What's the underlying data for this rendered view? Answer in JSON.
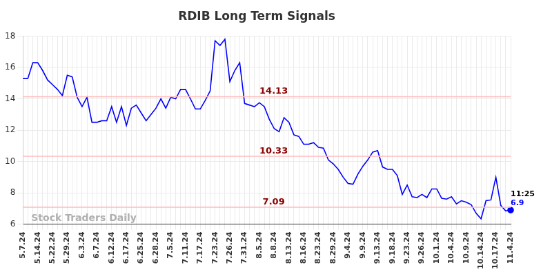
{
  "chart_data": {
    "type": "line",
    "title": "RDIB Long Term Signals",
    "categories": [
      "5.7.24",
      null,
      null,
      "5.14.24",
      null,
      null,
      "5.22.24",
      null,
      null,
      "5.29.24",
      null,
      null,
      "6.3.24",
      null,
      null,
      "6.7.24",
      null,
      null,
      "6.12.24",
      null,
      null,
      "6.17.24",
      null,
      null,
      "6.25.24",
      null,
      null,
      "6.28.24",
      null,
      null,
      "7.5.24",
      null,
      null,
      "7.11.24",
      null,
      null,
      "7.17.24",
      null,
      null,
      "7.23.24",
      null,
      null,
      "7.26.24",
      null,
      null,
      "7.31.24",
      null,
      null,
      "8.5.24",
      null,
      null,
      "8.8.24",
      null,
      null,
      "8.13.24",
      null,
      null,
      "8.16.24",
      null,
      null,
      "8.23.24",
      null,
      null,
      "8.29.24",
      null,
      null,
      "9.4.24",
      null,
      null,
      "9.9.24",
      null,
      null,
      "9.13.24",
      null,
      null,
      "9.18.24",
      null,
      null,
      "9.23.24",
      null,
      null,
      "9.26.24",
      null,
      null,
      "10.1.24",
      null,
      null,
      "10.4.24",
      null,
      null,
      "10.9.24",
      null,
      null,
      "10.14.24",
      null,
      null,
      "10.17.24",
      null,
      null,
      "11.4.24"
    ],
    "values": [
      15.3,
      15.3,
      16.3,
      16.3,
      15.8,
      15.2,
      14.9,
      14.6,
      14.2,
      15.5,
      15.4,
      14.1,
      13.5,
      14.1,
      12.5,
      12.5,
      12.6,
      12.6,
      13.5,
      12.5,
      13.5,
      12.3,
      13.4,
      13.6,
      13.1,
      12.6,
      13.0,
      13.4,
      14.0,
      13.4,
      14.1,
      14.0,
      14.6,
      14.6,
      14.0,
      13.35,
      13.35,
      13.9,
      14.5,
      17.7,
      17.4,
      17.8,
      15.1,
      15.8,
      16.3,
      13.7,
      13.6,
      13.5,
      13.75,
      13.5,
      12.7,
      12.1,
      11.9,
      12.8,
      12.5,
      11.7,
      11.6,
      11.1,
      11.1,
      11.2,
      10.9,
      10.85,
      10.1,
      9.85,
      9.5,
      9.0,
      8.6,
      8.55,
      9.2,
      9.7,
      10.1,
      10.6,
      10.7,
      9.65,
      9.5,
      9.5,
      9.1,
      7.9,
      8.5,
      7.75,
      7.7,
      7.9,
      7.7,
      8.25,
      8.25,
      7.65,
      7.6,
      7.75,
      7.3,
      7.5,
      7.4,
      7.25,
      6.7,
      6.35,
      7.5,
      7.55,
      9.0,
      7.2,
      6.85,
      6.9
    ],
    "color": "#0000ff",
    "ylim": [
      6,
      18
    ],
    "yticks": [
      6,
      8,
      10,
      12,
      14,
      16,
      18
    ],
    "grid": true,
    "reference_lines": [
      14.13,
      10.33,
      7.09
    ],
    "annotations": [
      {
        "text": "11:25"
      },
      {
        "text": "6.9"
      },
      {
        "text": "Stock Traders Daily"
      }
    ]
  }
}
